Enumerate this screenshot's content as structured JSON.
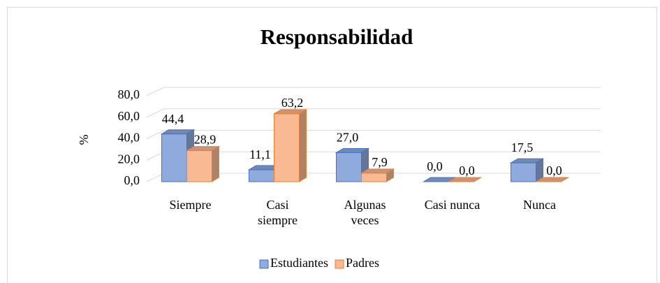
{
  "chart_data": {
    "type": "bar3d",
    "title": "Responsabilidad",
    "y_label": "%",
    "categories": [
      "Siempre",
      "Casi siempre",
      "Algunas veces",
      "Casi nunca",
      "Nunca"
    ],
    "series": [
      {
        "name": "Estudiantes",
        "color": "#8faadc",
        "values": [
          44.4,
          11.1,
          27.0,
          0.0,
          17.5
        ],
        "value_labels": [
          "44,4",
          "11,1",
          "27,0",
          "0,0",
          "17,5"
        ]
      },
      {
        "name": "Padres",
        "color": "#f8b993",
        "values": [
          28.9,
          63.2,
          7.9,
          0.0,
          0.0
        ],
        "value_labels": [
          "28,9",
          "63,2",
          "7,9",
          "0,0",
          "0,0"
        ]
      }
    ],
    "ylim": [
      0,
      80
    ],
    "yticks": [
      {
        "value": 0,
        "label": "0,0"
      },
      {
        "value": 20,
        "label": "20,0"
      },
      {
        "value": 40,
        "label": "40,0"
      },
      {
        "value": 60,
        "label": "60,0"
      },
      {
        "value": 80,
        "label": "80,0"
      }
    ],
    "grid": true,
    "legend": "bottom"
  }
}
